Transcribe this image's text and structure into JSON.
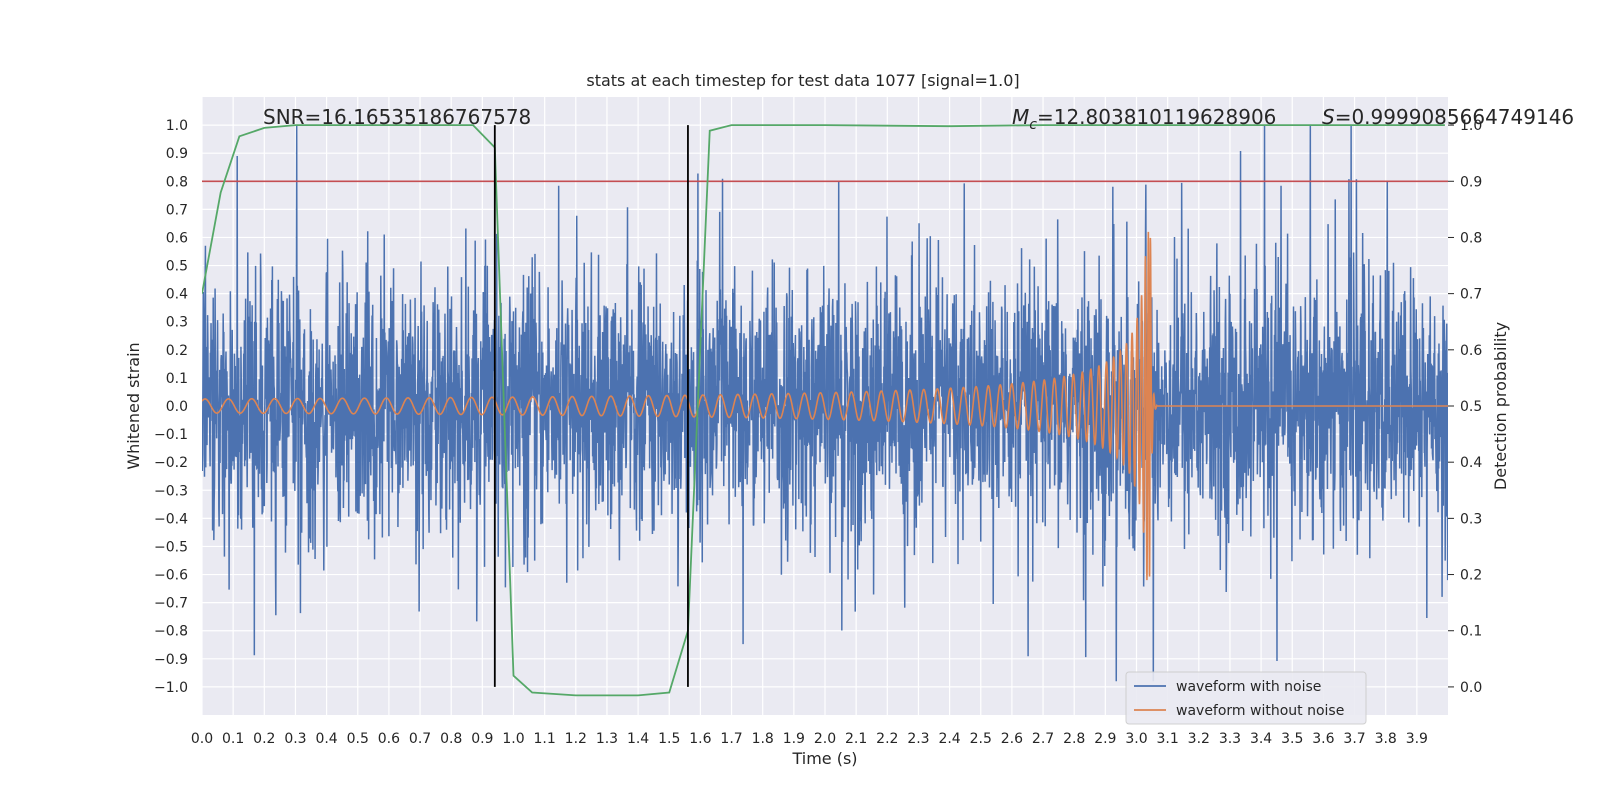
{
  "chart_data": {
    "type": "line",
    "title": "stats at each timestep for test data 1077 [signal=1.0]",
    "xlabel": "Time (s)",
    "ylabel": "Whitened strain",
    "ylabel_right": "Detection probability",
    "xlim": [
      0.0,
      4.0
    ],
    "ylim": [
      -1.1,
      1.1
    ],
    "ylim_right": [
      -0.05,
      1.05
    ],
    "grid": true,
    "xticks": [
      "0.0",
      "0.1",
      "0.2",
      "0.3",
      "0.4",
      "0.5",
      "0.6",
      "0.7",
      "0.8",
      "0.9",
      "1.0",
      "1.1",
      "1.2",
      "1.3",
      "1.4",
      "1.5",
      "1.6",
      "1.7",
      "1.8",
      "1.9",
      "2.0",
      "2.1",
      "2.2",
      "2.3",
      "2.4",
      "2.5",
      "2.6",
      "2.7",
      "2.8",
      "2.9",
      "3.0",
      "3.1",
      "3.2",
      "3.3",
      "3.4",
      "3.5",
      "3.6",
      "3.7",
      "3.8",
      "3.9"
    ],
    "yticks": [
      "1.0",
      "0.9",
      "0.8",
      "0.7",
      "0.6",
      "0.5",
      "0.4",
      "0.3",
      "0.2",
      "0.1",
      "0.0",
      "−0.1",
      "−0.2",
      "−0.3",
      "−0.4",
      "−0.5",
      "−0.6",
      "−0.7",
      "−0.8",
      "−0.9",
      "−1.0"
    ],
    "yticks_right": [
      "1.0",
      "0.9",
      "0.8",
      "0.7",
      "0.6",
      "0.5",
      "0.4",
      "0.3",
      "0.2",
      "0.1",
      "0.0"
    ],
    "annotations": {
      "snr": "SNR=16.16535186767578",
      "mc_symbol": "M",
      "mc_sub": "c",
      "mc_value": "=12.803810119628906",
      "s_symbol": "S",
      "s_value": "=0.9999085664749146"
    },
    "threshold_right": 0.9,
    "vertical_lines_x": [
      0.94,
      1.56
    ],
    "detection_probability": {
      "x": [
        0.0,
        0.06,
        0.12,
        0.2,
        0.3,
        0.5,
        0.7,
        0.87,
        0.94,
        1.0,
        1.06,
        1.2,
        1.4,
        1.5,
        1.56,
        1.63,
        1.7,
        2.0,
        2.4,
        2.7,
        3.0,
        3.3,
        3.6,
        3.99
      ],
      "y": [
        0.7,
        0.88,
        0.98,
        0.995,
        1.0,
        1.0,
        1.0,
        1.0,
        0.96,
        0.02,
        -0.01,
        -0.015,
        -0.015,
        -0.01,
        0.1,
        0.99,
        1.0,
        1.0,
        0.998,
        1.0,
        1.0,
        1.0,
        1.0,
        1.0
      ]
    },
    "series": [
      {
        "name": "waveform with noise",
        "color": "#4c72b0",
        "noise_amplitude": 0.22,
        "peak_range": [
          -0.98,
          1.0
        ]
      },
      {
        "name": "waveform without noise",
        "color": "#dd8452",
        "chirp_start_amplitude": 0.025,
        "chirp_peak_amplitude": 0.62,
        "merger_time": 3.045
      }
    ],
    "colors": {
      "background": "#eaeaf2",
      "grid": "#ffffff",
      "noise": "#4c72b0",
      "clean": "#dd8452",
      "probability": "#55a868",
      "threshold": "#c44e52",
      "vline": "#000000"
    },
    "legend": {
      "placement": "lower-right",
      "entries": [
        "waveform with noise",
        "waveform without noise"
      ]
    }
  }
}
